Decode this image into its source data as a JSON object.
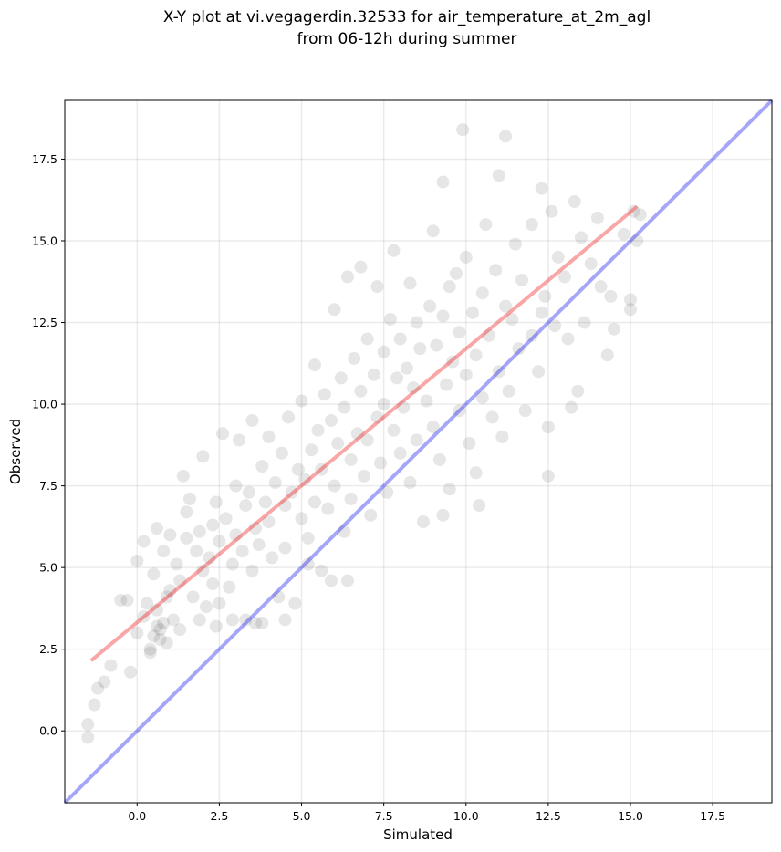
{
  "chart_data": {
    "type": "scatter",
    "title": [
      "X-Y plot at vi.vegagerdin.32533 for air_temperature_at_2m_agl",
      "from 06-12h during summer"
    ],
    "xlabel": "Simulated",
    "ylabel": "Observed",
    "xlim": [
      -2.2,
      19.3
    ],
    "ylim": [
      -2.2,
      19.3
    ],
    "x_ticks": [
      0.0,
      2.5,
      5.0,
      7.5,
      10.0,
      12.5,
      15.0,
      17.5
    ],
    "y_ticks": [
      0.0,
      2.5,
      5.0,
      7.5,
      10.0,
      12.5,
      15.0,
      17.5
    ],
    "grid": true,
    "point_color": "#555555",
    "point_alpha": 0.15,
    "points": [
      [
        -1.5,
        -0.2
      ],
      [
        -1.5,
        0.2
      ],
      [
        -1.3,
        0.8
      ],
      [
        -1.2,
        1.3
      ],
      [
        -1.0,
        1.5
      ],
      [
        -0.8,
        2.0
      ],
      [
        -0.5,
        4.0
      ],
      [
        -0.3,
        4.0
      ],
      [
        -0.2,
        1.8
      ],
      [
        0.0,
        3.0
      ],
      [
        0.2,
        3.5
      ],
      [
        0.3,
        3.9
      ],
      [
        0.4,
        2.5
      ],
      [
        0.5,
        2.9
      ],
      [
        0.6,
        3.2
      ],
      [
        0.6,
        3.7
      ],
      [
        0.7,
        3.1
      ],
      [
        0.7,
        2.8
      ],
      [
        0.8,
        3.3
      ],
      [
        0.9,
        4.1
      ],
      [
        0.2,
        5.8
      ],
      [
        0.0,
        5.2
      ],
      [
        0.6,
        6.2
      ],
      [
        0.5,
        4.8
      ],
      [
        0.8,
        5.5
      ],
      [
        1.0,
        6.0
      ],
      [
        1.0,
        4.3
      ],
      [
        1.1,
        3.4
      ],
      [
        1.2,
        5.1
      ],
      [
        1.3,
        4.6
      ],
      [
        1.4,
        7.8
      ],
      [
        1.5,
        6.7
      ],
      [
        1.5,
        5.9
      ],
      [
        1.6,
        7.1
      ],
      [
        1.7,
        4.1
      ],
      [
        1.8,
        5.5
      ],
      [
        1.9,
        6.1
      ],
      [
        2.0,
        4.9
      ],
      [
        2.0,
        8.4
      ],
      [
        2.1,
        3.8
      ],
      [
        2.2,
        5.3
      ],
      [
        2.3,
        6.3
      ],
      [
        2.3,
        4.5
      ],
      [
        2.4,
        7.0
      ],
      [
        2.5,
        5.8
      ],
      [
        2.5,
        3.9
      ],
      [
        2.6,
        9.1
      ],
      [
        2.7,
        6.5
      ],
      [
        2.8,
        4.4
      ],
      [
        2.9,
        5.1
      ],
      [
        3.0,
        7.5
      ],
      [
        3.0,
        6.0
      ],
      [
        3.1,
        8.9
      ],
      [
        3.2,
        5.5
      ],
      [
        3.3,
        3.4
      ],
      [
        3.3,
        6.9
      ],
      [
        3.4,
        7.3
      ],
      [
        3.5,
        4.9
      ],
      [
        3.5,
        9.5
      ],
      [
        3.6,
        6.2
      ],
      [
        3.7,
        5.7
      ],
      [
        3.8,
        8.1
      ],
      [
        3.8,
        3.3
      ],
      [
        3.9,
        7.0
      ],
      [
        4.0,
        6.4
      ],
      [
        4.0,
        9.0
      ],
      [
        4.1,
        5.3
      ],
      [
        4.2,
        7.6
      ],
      [
        4.3,
        4.1
      ],
      [
        4.4,
        8.5
      ],
      [
        4.5,
        6.9
      ],
      [
        4.5,
        5.6
      ],
      [
        4.6,
        9.6
      ],
      [
        4.7,
        7.3
      ],
      [
        4.8,
        3.9
      ],
      [
        4.9,
        8.0
      ],
      [
        5.0,
        6.5
      ],
      [
        5.0,
        10.1
      ],
      [
        5.1,
        7.7
      ],
      [
        5.2,
        5.9
      ],
      [
        5.3,
        8.6
      ],
      [
        5.4,
        11.2
      ],
      [
        5.4,
        7.0
      ],
      [
        5.5,
        9.2
      ],
      [
        5.6,
        4.9
      ],
      [
        5.6,
        8.0
      ],
      [
        5.7,
        10.3
      ],
      [
        5.8,
        6.8
      ],
      [
        5.9,
        9.5
      ],
      [
        6.0,
        7.5
      ],
      [
        6.0,
        12.9
      ],
      [
        6.1,
        8.8
      ],
      [
        6.2,
        10.8
      ],
      [
        6.3,
        6.1
      ],
      [
        6.3,
        9.9
      ],
      [
        6.4,
        13.9
      ],
      [
        6.5,
        8.3
      ],
      [
        6.5,
        7.1
      ],
      [
        6.6,
        11.4
      ],
      [
        6.7,
        9.1
      ],
      [
        6.8,
        10.4
      ],
      [
        6.8,
        14.2
      ],
      [
        6.9,
        7.8
      ],
      [
        7.0,
        12.0
      ],
      [
        7.0,
        8.9
      ],
      [
        7.1,
        6.6
      ],
      [
        7.2,
        10.9
      ],
      [
        7.3,
        9.6
      ],
      [
        7.3,
        13.6
      ],
      [
        7.4,
        8.2
      ],
      [
        7.5,
        11.6
      ],
      [
        7.5,
        10.0
      ],
      [
        7.6,
        7.3
      ],
      [
        7.7,
        12.6
      ],
      [
        7.8,
        9.2
      ],
      [
        7.8,
        14.7
      ],
      [
        7.9,
        10.8
      ],
      [
        8.0,
        8.5
      ],
      [
        8.0,
        12.0
      ],
      [
        8.1,
        9.9
      ],
      [
        8.2,
        11.1
      ],
      [
        8.3,
        7.6
      ],
      [
        8.3,
        13.7
      ],
      [
        8.4,
        10.5
      ],
      [
        8.5,
        8.9
      ],
      [
        8.5,
        12.5
      ],
      [
        8.6,
        11.7
      ],
      [
        8.7,
        6.4
      ],
      [
        8.8,
        10.1
      ],
      [
        8.9,
        13.0
      ],
      [
        9.0,
        9.3
      ],
      [
        9.0,
        15.3
      ],
      [
        9.1,
        11.8
      ],
      [
        9.2,
        8.3
      ],
      [
        9.3,
        12.7
      ],
      [
        9.3,
        16.8
      ],
      [
        9.4,
        10.6
      ],
      [
        9.5,
        13.6
      ],
      [
        9.5,
        7.4
      ],
      [
        9.6,
        11.3
      ],
      [
        9.7,
        14.0
      ],
      [
        9.8,
        9.8
      ],
      [
        9.8,
        12.2
      ],
      [
        9.9,
        18.4
      ],
      [
        10.0,
        10.9
      ],
      [
        10.0,
        14.5
      ],
      [
        10.1,
        8.8
      ],
      [
        10.2,
        12.8
      ],
      [
        10.3,
        11.5
      ],
      [
        10.4,
        6.9
      ],
      [
        10.5,
        13.4
      ],
      [
        10.5,
        10.2
      ],
      [
        10.6,
        15.5
      ],
      [
        10.7,
        12.1
      ],
      [
        10.8,
        9.6
      ],
      [
        10.9,
        14.1
      ],
      [
        11.0,
        11.0
      ],
      [
        11.0,
        17.0
      ],
      [
        11.2,
        13.0
      ],
      [
        11.2,
        18.2
      ],
      [
        11.3,
        10.4
      ],
      [
        11.4,
        12.6
      ],
      [
        11.5,
        14.9
      ],
      [
        11.6,
        11.7
      ],
      [
        11.7,
        13.8
      ],
      [
        11.8,
        9.8
      ],
      [
        12.0,
        15.5
      ],
      [
        12.0,
        12.1
      ],
      [
        12.2,
        11.0
      ],
      [
        12.3,
        16.6
      ],
      [
        12.4,
        13.3
      ],
      [
        12.5,
        7.8
      ],
      [
        12.5,
        9.3
      ],
      [
        12.6,
        15.9
      ],
      [
        12.7,
        12.4
      ],
      [
        12.8,
        14.5
      ],
      [
        13.0,
        13.9
      ],
      [
        13.1,
        12.0
      ],
      [
        13.3,
        16.2
      ],
      [
        13.4,
        10.4
      ],
      [
        13.5,
        15.1
      ],
      [
        13.6,
        12.5
      ],
      [
        13.8,
        14.3
      ],
      [
        14.0,
        15.7
      ],
      [
        14.1,
        13.6
      ],
      [
        14.3,
        11.5
      ],
      [
        14.5,
        12.3
      ],
      [
        14.8,
        15.2
      ],
      [
        15.0,
        13.2
      ],
      [
        15.1,
        15.9
      ],
      [
        15.2,
        15.0
      ],
      [
        15.3,
        15.8
      ],
      [
        15.0,
        12.9
      ],
      [
        14.4,
        13.3
      ],
      [
        13.2,
        9.9
      ],
      [
        12.3,
        12.8
      ],
      [
        11.1,
        9.0
      ],
      [
        10.3,
        7.9
      ],
      [
        9.3,
        6.6
      ],
      [
        6.4,
        4.6
      ],
      [
        5.9,
        4.6
      ],
      [
        5.2,
        5.1
      ],
      [
        4.5,
        3.4
      ],
      [
        3.6,
        3.3
      ],
      [
        2.9,
        3.4
      ],
      [
        2.4,
        3.2
      ],
      [
        1.9,
        3.4
      ],
      [
        1.3,
        3.1
      ],
      [
        0.9,
        2.7
      ],
      [
        0.4,
        2.4
      ]
    ],
    "identity_line": {
      "x": [
        -2.2,
        19.3
      ],
      "y": [
        -2.2,
        19.3
      ],
      "color": "#0000ee",
      "alpha": 0.35
    },
    "fit_line": {
      "x": [
        -1.4,
        15.2
      ],
      "y": [
        2.15,
        16.05
      ],
      "color": "#ee0000",
      "alpha": 0.35
    }
  }
}
